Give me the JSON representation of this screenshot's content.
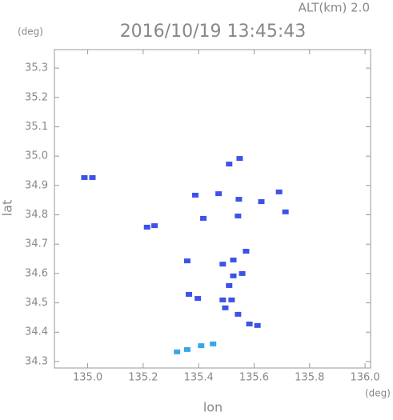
{
  "chart_data": {
    "type": "scatter",
    "title": "2016/10/19 13:45:43",
    "subtitle": "ALT(km) 2.0",
    "y_unit": "(deg)",
    "x_unit": "(deg)",
    "x_label": "lon",
    "y_label": "lat",
    "xlim": [
      134.88,
      136.02
    ],
    "ylim": [
      34.278,
      35.363
    ],
    "xticks": [
      {
        "value": 135.0,
        "label": "135.0"
      },
      135.2,
      135.4,
      135.6,
      135.8,
      {
        "value": 136.0,
        "label": "136.0"
      }
    ],
    "yticks": [
      {
        "value": 34.3,
        "label": "34.3"
      },
      34.4,
      34.5,
      34.6,
      34.7,
      34.8,
      34.9,
      {
        "value": 35.0,
        "label": "35.0"
      },
      35.1,
      35.2,
      35.3
    ],
    "series": [
      {
        "color": "#3d52e6",
        "x": [
          134.988,
          135.017,
          135.548,
          135.51,
          135.388,
          135.472,
          135.545,
          135.69,
          135.417,
          135.542,
          135.626,
          135.713,
          135.214,
          135.241,
          135.571,
          135.525,
          135.487,
          135.359,
          135.525,
          135.557,
          135.51,
          135.519,
          135.487,
          135.496,
          135.397,
          135.365,
          135.542,
          135.583,
          135.612
        ],
        "values": [
          34.927,
          34.927,
          34.992,
          34.973,
          34.867,
          34.872,
          34.853,
          34.878,
          34.788,
          34.796,
          34.845,
          34.81,
          34.758,
          34.763,
          34.676,
          34.646,
          34.632,
          34.643,
          34.592,
          34.6,
          34.559,
          34.51,
          34.51,
          34.483,
          34.515,
          34.529,
          34.461,
          34.428,
          34.423
        ]
      },
      {
        "color": "#3aa6ea",
        "x": [
          135.359,
          135.409,
          135.452,
          135.322
        ],
        "values": [
          34.341,
          34.354,
          34.36,
          34.333
        ]
      }
    ]
  }
}
